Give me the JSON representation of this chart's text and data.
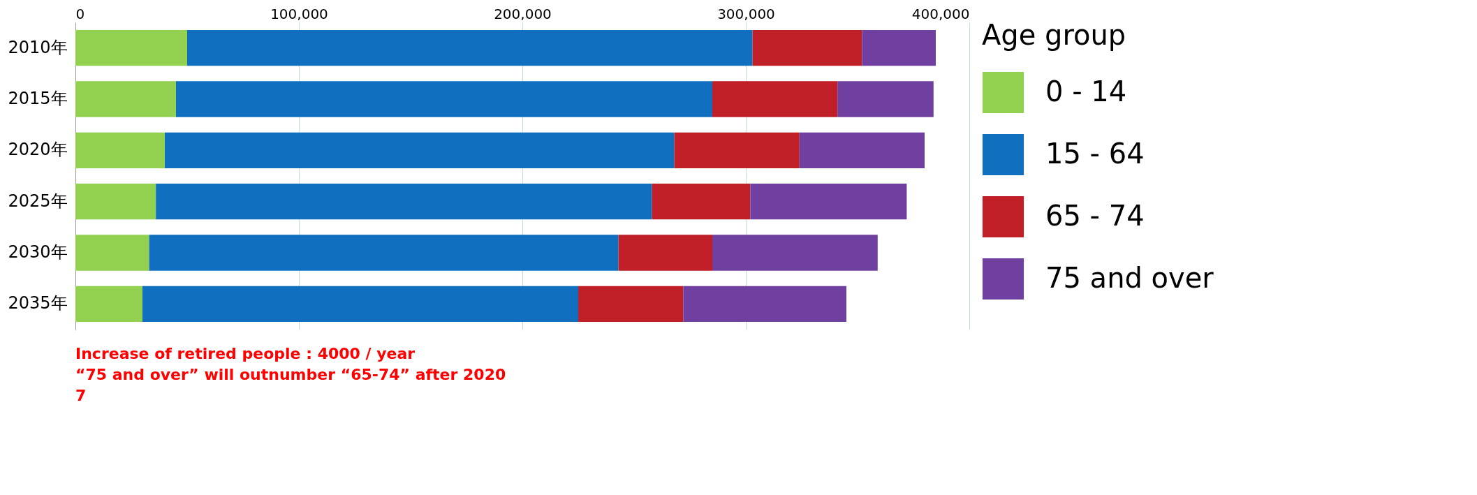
{
  "chart_data": {
    "type": "bar",
    "orientation": "horizontal",
    "stacked": true,
    "legend_title": "Age group",
    "legend": "right",
    "grid": "x",
    "categories": [
      "2010年",
      "2015年",
      "2020年",
      "2025年",
      "2030年",
      "2035年"
    ],
    "series": [
      {
        "name": "0 - 14",
        "color": "#92d050",
        "values": [
          50000,
          45000,
          40000,
          36000,
          33000,
          30000
        ]
      },
      {
        "name": "15 - 64",
        "color": "#1070bf",
        "values": [
          253000,
          240000,
          228000,
          222000,
          210000,
          195000
        ]
      },
      {
        "name": "65 - 74",
        "color": "#c01f28",
        "values": [
          49000,
          56000,
          56000,
          44000,
          42000,
          47000
        ]
      },
      {
        "name": "75 and over",
        "color": "#7040a0",
        "values": [
          33000,
          43000,
          56000,
          70000,
          74000,
          73000
        ]
      }
    ],
    "xlim": [
      0,
      400000
    ],
    "xticks": [
      0,
      {
        "value": 100000,
        "label": "100,000"
      },
      {
        "value": 200000,
        "label": "200,000"
      },
      {
        "value": 300000,
        "label": "300,000"
      },
      {
        "value": 400000,
        "label": "400,000"
      }
    ],
    "annotations": [
      "Increase of retired people : 4000 / year",
      "“75 and over” will outnumber “65-74” after 2020",
      "7"
    ]
  }
}
